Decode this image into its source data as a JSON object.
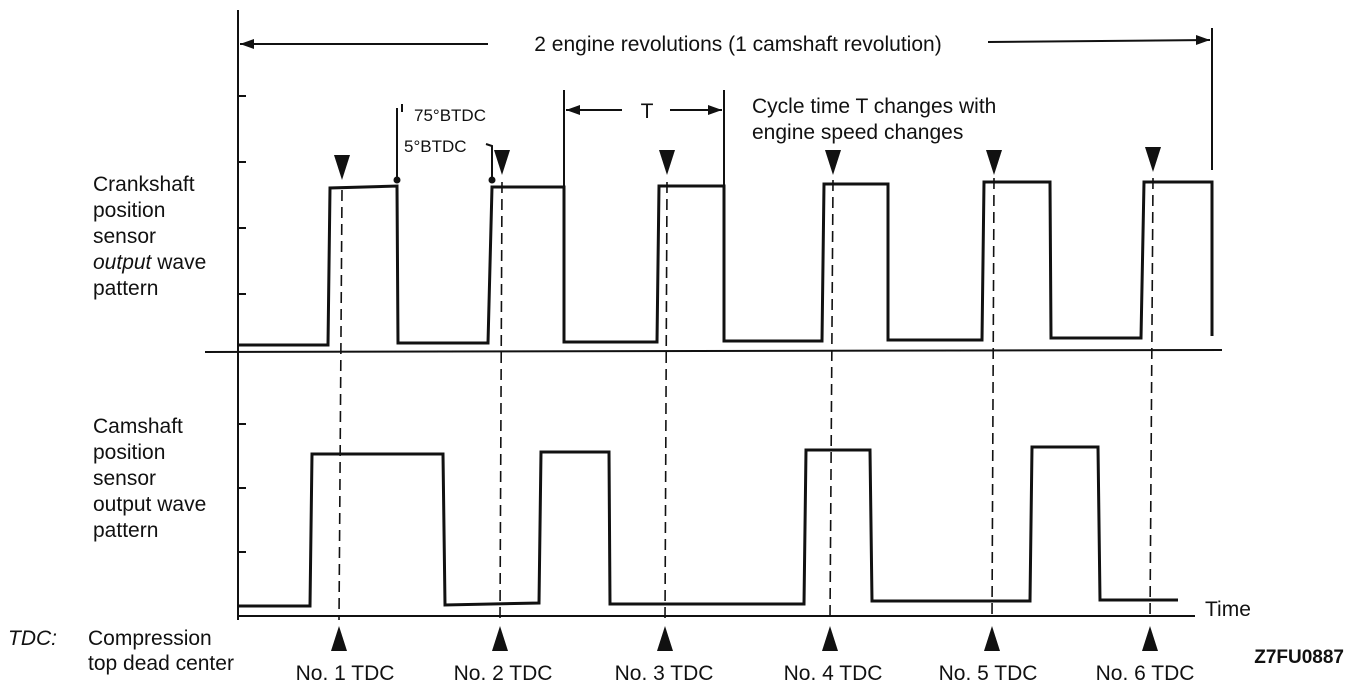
{
  "header": {
    "span_label": "2 engine revolutions (1 camshaft revolution)",
    "btdc_75": "75°BTDC",
    "btdc_5": "5°BTDC",
    "period_label": "T",
    "cycle_note_line1": "Cycle time T changes with",
    "cycle_note_line2": "engine speed changes"
  },
  "crank_label": {
    "line1": "Crankshaft",
    "line2": "position",
    "line3": "sensor",
    "line4_italic": "output",
    "line4_rest": " wave",
    "line5": "pattern"
  },
  "cam_label": {
    "line1": "Camshaft",
    "line2": "position",
    "line3": "sensor",
    "line4": "output wave",
    "line5": "pattern"
  },
  "time_label": "Time",
  "tdc_legend": {
    "abbr": "TDC:",
    "line1": "Compression",
    "line2": "top dead center"
  },
  "tdc_markers": [
    "No. 1 TDC",
    "No. 2 TDC",
    "No. 3 TDC",
    "No. 4 TDC",
    "No. 5 TDC",
    "No. 6 TDC"
  ],
  "figure_code": "Z7FU0887"
}
